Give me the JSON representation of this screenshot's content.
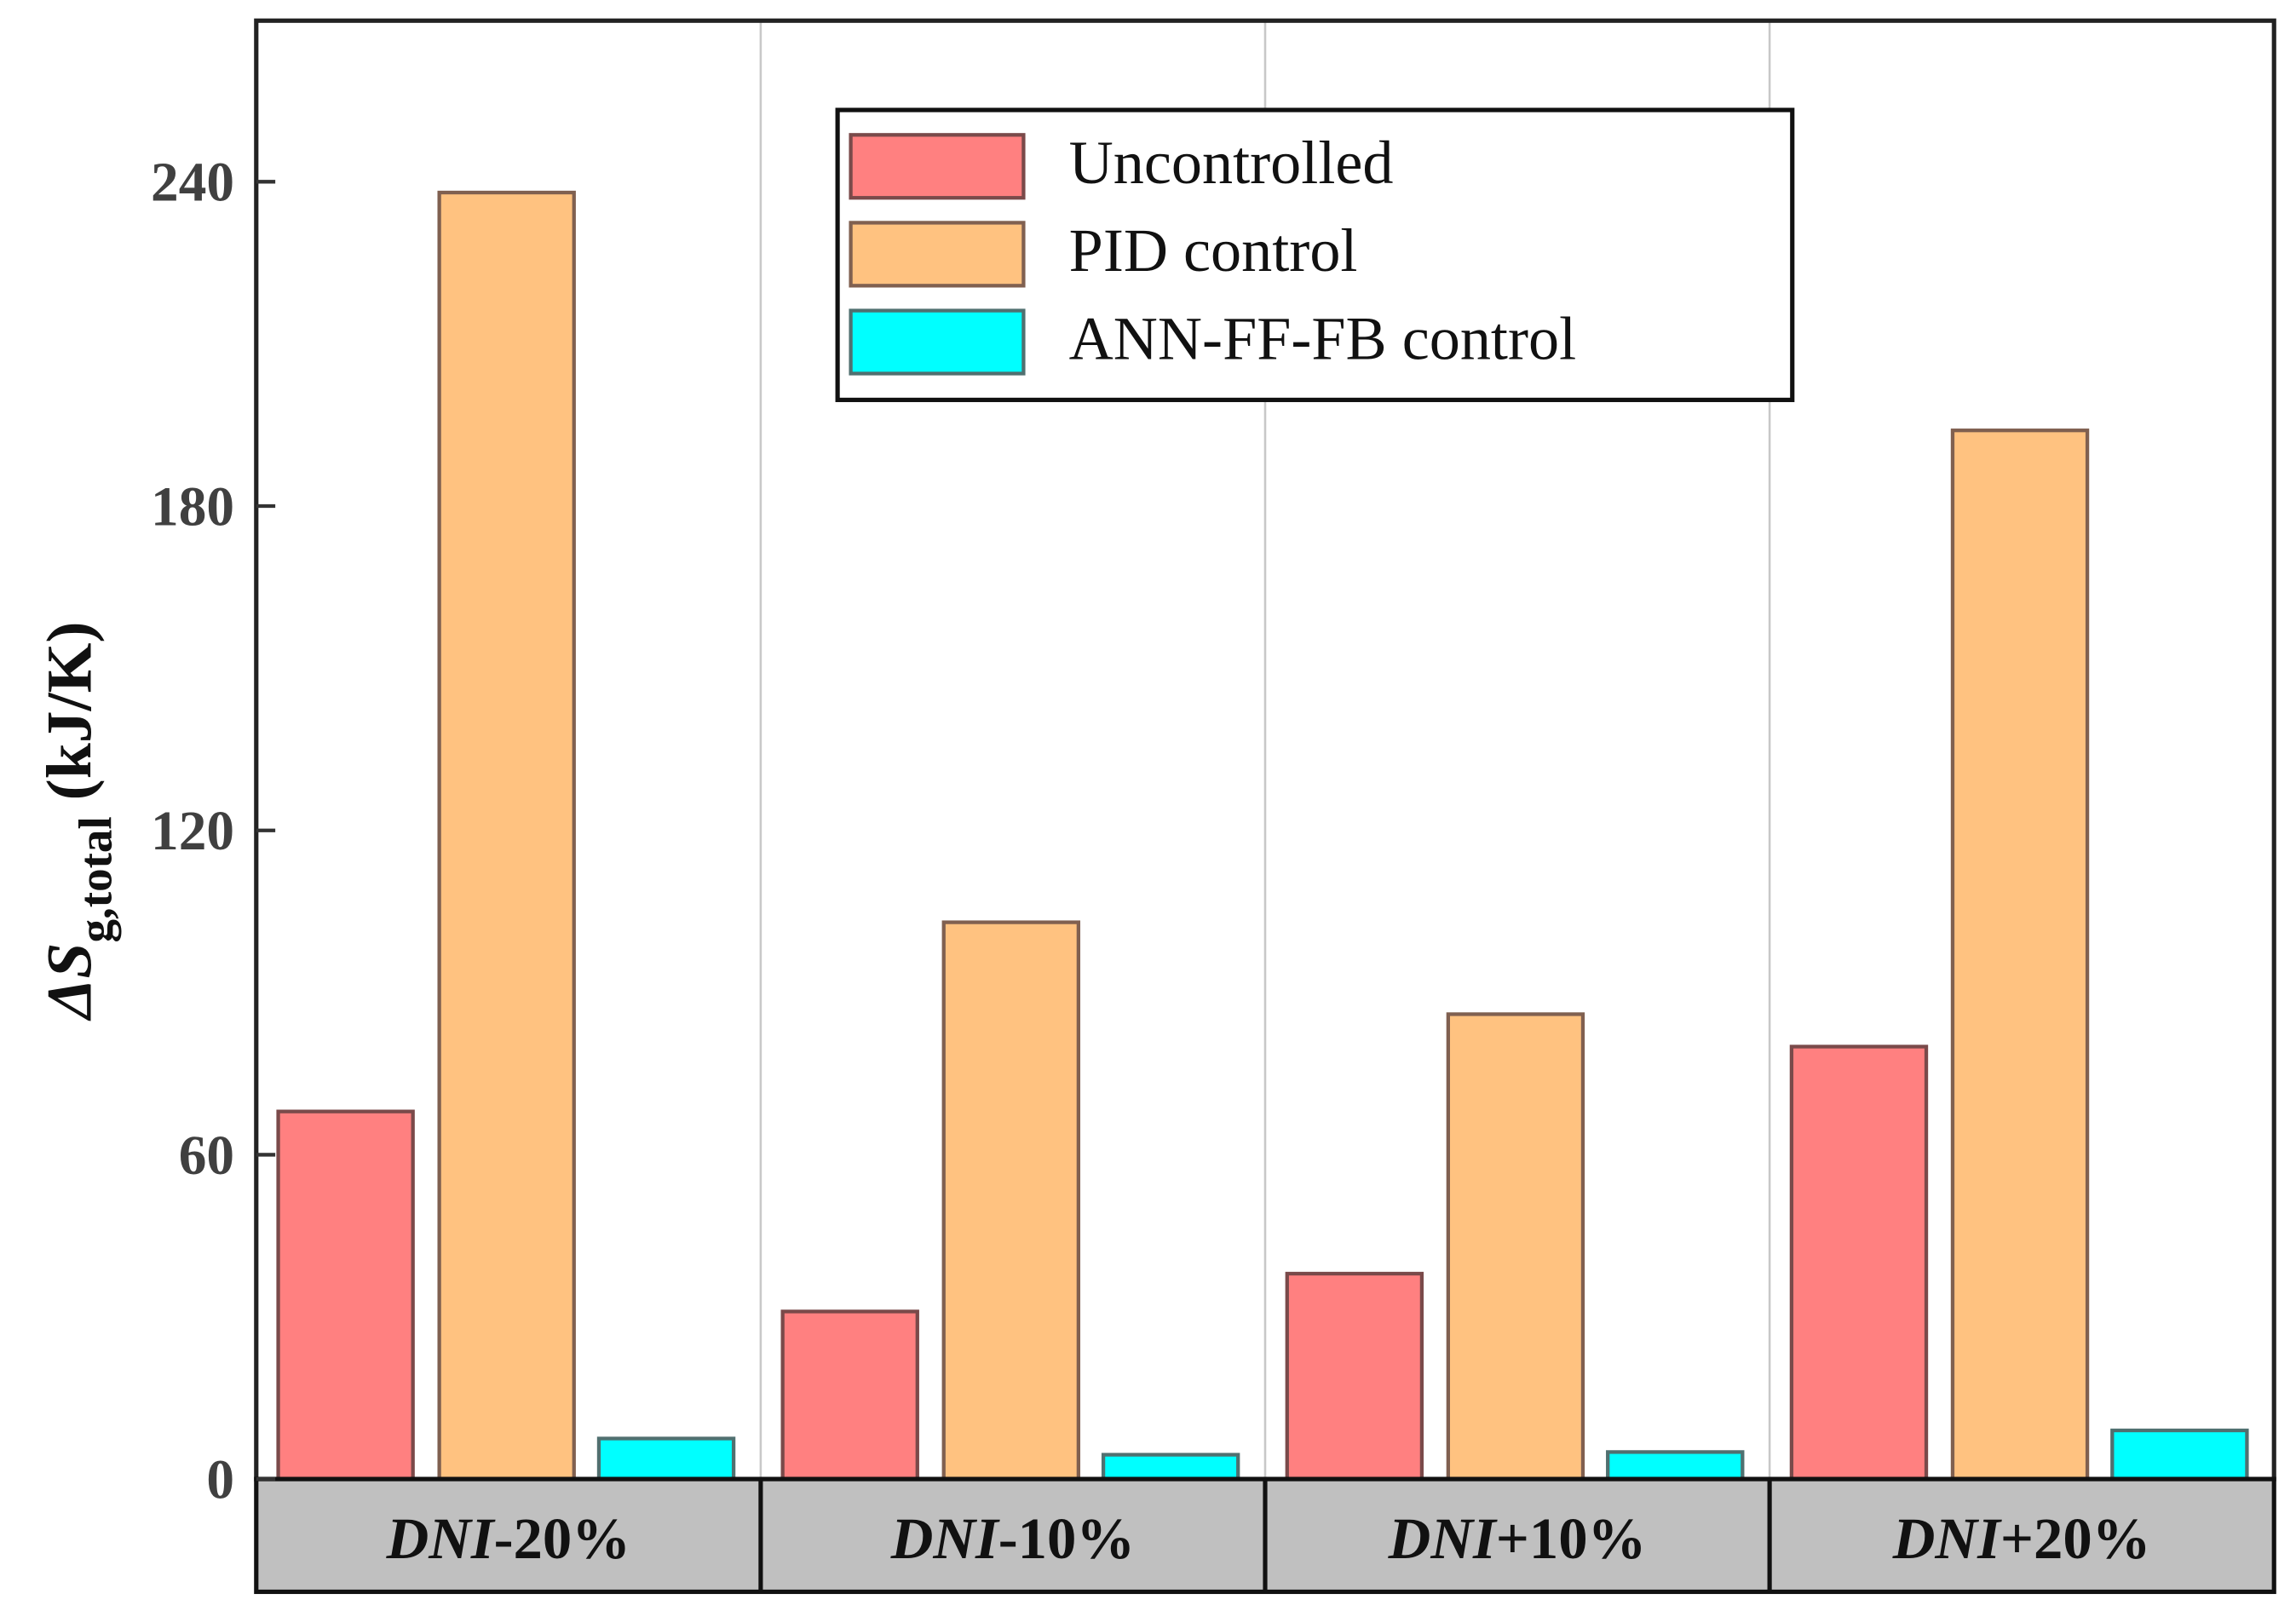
{
  "chart_data": {
    "type": "bar",
    "title": "",
    "xlabel": "",
    "ylabel": {
      "prefix": "ΔS",
      "subscript": "g,total",
      "unit": " (kJ/K)"
    },
    "ylim": [
      0,
      270
    ],
    "yticks": [
      0,
      60,
      120,
      180,
      240
    ],
    "grid": false,
    "legend_position": "top-center",
    "categories": [
      {
        "italic": "DNI",
        "rest": "-20%"
      },
      {
        "italic": "DNI",
        "rest": "-10%"
      },
      {
        "italic": "DNI",
        "rest": "+10%"
      },
      {
        "italic": "DNI",
        "rest": "+20%"
      }
    ],
    "series": [
      {
        "name": "Uncontrolled",
        "color": "#ff8080",
        "values": [
          68,
          31,
          38,
          80
        ]
      },
      {
        "name": "PID control",
        "color": "#ffc280",
        "values": [
          238,
          103,
          86,
          194
        ]
      },
      {
        "name": "ANN-FF-FB control",
        "color": "#00ffff",
        "values": [
          7.5,
          4.5,
          5,
          9
        ]
      }
    ]
  }
}
